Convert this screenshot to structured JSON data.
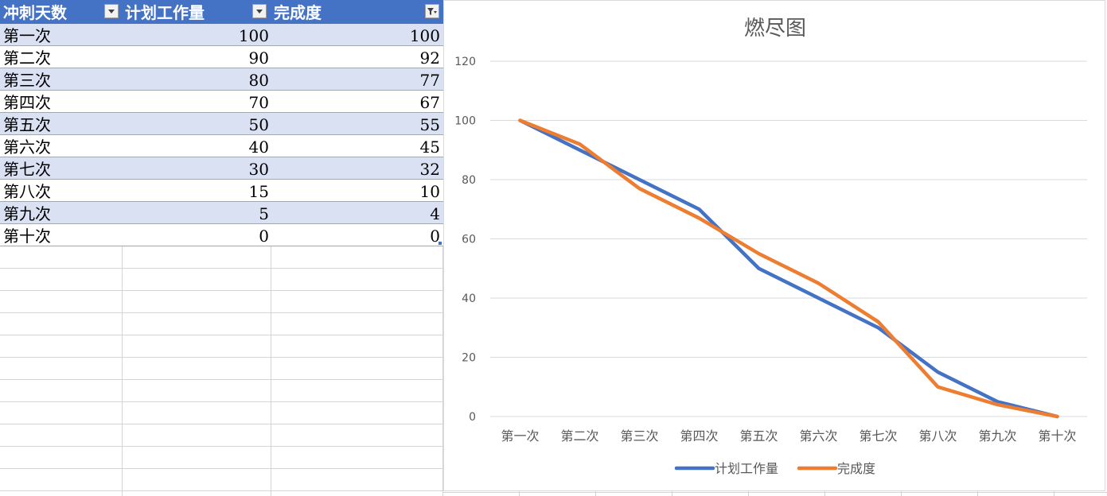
{
  "table": {
    "headers": [
      "冲刺天数",
      "计划工作量",
      "完成度"
    ],
    "rows": [
      [
        "第一次",
        "100",
        "100"
      ],
      [
        "第二次",
        "90",
        "92"
      ],
      [
        "第三次",
        "80",
        "77"
      ],
      [
        "第四次",
        "70",
        "67"
      ],
      [
        "第五次",
        "50",
        "55"
      ],
      [
        "第六次",
        "40",
        "45"
      ],
      [
        "第七次",
        "30",
        "32"
      ],
      [
        "第八次",
        "15",
        "10"
      ],
      [
        "第九次",
        "5",
        "4"
      ],
      [
        "第十次",
        "0",
        "0"
      ]
    ]
  },
  "colors": {
    "header_bg": "#4472c4",
    "band_bg": "#d9e1f2",
    "series_plan": "#4472c4",
    "series_done": "#ed7d31"
  },
  "chart_data": {
    "type": "line",
    "title": "燃尽图",
    "categories": [
      "第一次",
      "第二次",
      "第三次",
      "第四次",
      "第五次",
      "第六次",
      "第七次",
      "第八次",
      "第九次",
      "第十次"
    ],
    "series": [
      {
        "name": "计划工作量",
        "values": [
          100,
          90,
          80,
          70,
          50,
          40,
          30,
          15,
          5,
          0
        ]
      },
      {
        "name": "完成度",
        "values": [
          100,
          92,
          77,
          67,
          55,
          45,
          32,
          10,
          4,
          0
        ]
      }
    ],
    "ylim": [
      0,
      120
    ],
    "yticks": [
      0,
      20,
      40,
      60,
      80,
      100,
      120
    ],
    "grid": true,
    "legend_position": "bottom"
  }
}
